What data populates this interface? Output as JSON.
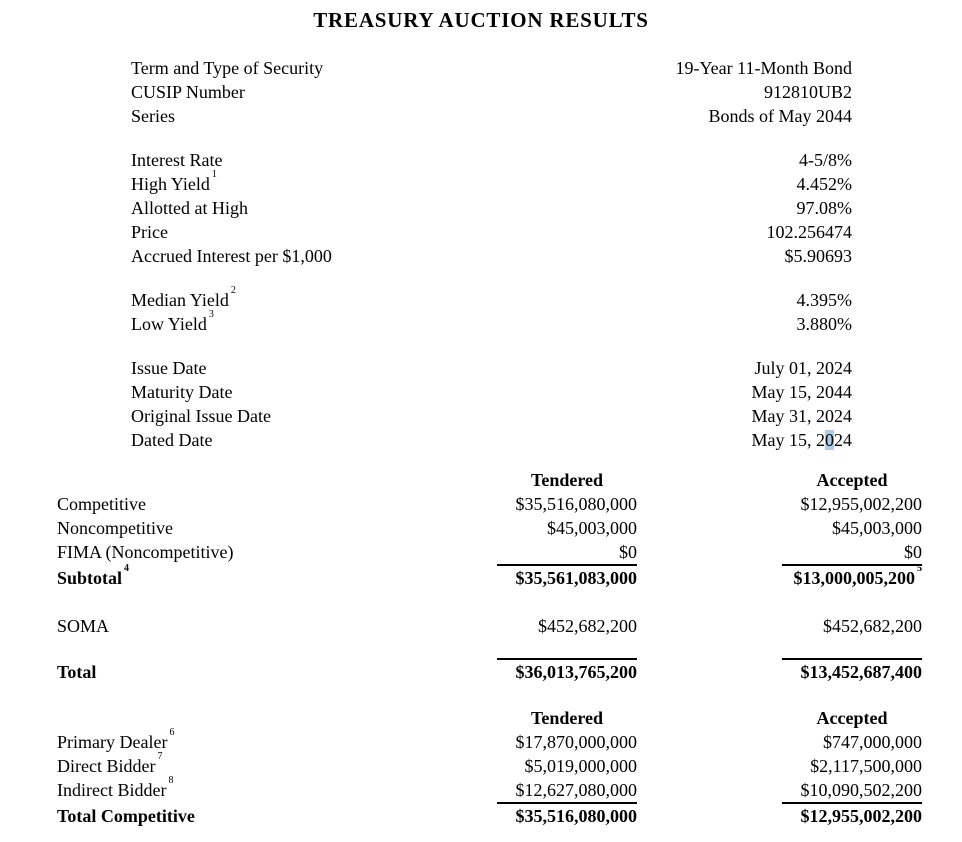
{
  "title": "TREASURY AUCTION RESULTS",
  "colors": {
    "selection_highlight": "#aecbea",
    "text": "#000000",
    "background": "#ffffff"
  },
  "security": [
    {
      "label": "Term and Type of Security",
      "value": "19-Year 11-Month Bond"
    },
    {
      "label": "CUSIP Number",
      "value": "912810UB2"
    },
    {
      "label": "Series",
      "value": "Bonds of May 2044"
    }
  ],
  "rates": [
    {
      "label": "Interest Rate",
      "value": "4-5/8%"
    },
    {
      "label": "High Yield",
      "sup": "1",
      "value": "4.452%"
    },
    {
      "label": "Allotted at High",
      "value": "97.08%"
    },
    {
      "label": "Price",
      "value": "102.256474"
    },
    {
      "label": "Accrued Interest per $1,000",
      "value": "$5.90693"
    }
  ],
  "yields": [
    {
      "label": "Median Yield",
      "sup": "2",
      "value": "4.395%"
    },
    {
      "label": "Low Yield",
      "sup": "3",
      "value": "3.880%"
    }
  ],
  "dates": [
    {
      "label": "Issue Date",
      "value": "July 01, 2024"
    },
    {
      "label": "Maturity Date",
      "value": "May 15, 2044"
    },
    {
      "label": "Original Issue Date",
      "value": "May 31, 2024"
    },
    {
      "label": "Dated Date",
      "value_prefix": "May 15, 2",
      "value_highlight": "0",
      "value_suffix": "24"
    }
  ],
  "amounts": {
    "headers": {
      "tendered": "Tendered",
      "accepted": "Accepted"
    },
    "rows": [
      {
        "label": "Competitive",
        "tendered": "$35,516,080,000",
        "accepted": "$12,955,002,200"
      },
      {
        "label": "Noncompetitive",
        "tendered": "$45,003,000",
        "accepted": "$45,003,000"
      },
      {
        "label": "FIMA (Noncompetitive)",
        "tendered": "$0",
        "accepted": "$0"
      },
      {
        "label": "Subtotal",
        "sup": "4",
        "tendered": "$35,561,083,000",
        "accepted": "$13,000,005,200",
        "accepted_sup": "5"
      },
      {
        "label": "SOMA",
        "tendered": "$452,682,200",
        "accepted": "$452,682,200"
      },
      {
        "label": "Total",
        "tendered": "$36,013,765,200",
        "accepted": "$13,452,687,400"
      }
    ]
  },
  "bidders": {
    "headers": {
      "tendered": "Tendered",
      "accepted": "Accepted"
    },
    "rows": [
      {
        "label": "Primary Dealer",
        "sup": "6",
        "tendered": "$17,870,000,000",
        "accepted": "$747,000,000"
      },
      {
        "label": "Direct Bidder",
        "sup": "7",
        "tendered": "$5,019,000,000",
        "accepted": "$2,117,500,000"
      },
      {
        "label": "Indirect Bidder",
        "sup": "8",
        "tendered": "$12,627,080,000",
        "accepted": "$10,090,502,200"
      },
      {
        "label": "Total Competitive",
        "tendered": "$35,516,080,000",
        "accepted": "$12,955,002,200"
      }
    ]
  }
}
